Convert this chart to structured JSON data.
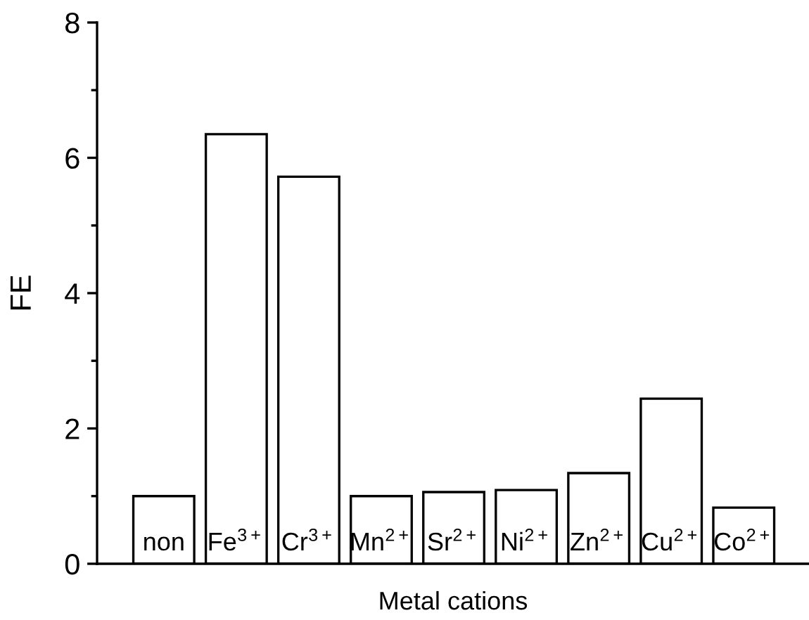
{
  "chart_data": {
    "type": "bar",
    "xlabel": "Metal cations",
    "ylabel": "FE",
    "categories": [
      "non",
      "Fe$^{3+}$",
      "Cr$^{3+}$",
      "Mn$^{2+}$",
      "Sr$^{2+}$",
      "Ni$^{2+}$",
      "Zn$^{2+}$",
      "Cu$^{2+}$",
      "Co$^{2+}$"
    ],
    "values": [
      1.0,
      6.35,
      5.72,
      1.0,
      1.06,
      1.09,
      1.34,
      2.44,
      0.83
    ],
    "color": "#ffffff",
    "ylim": [
      0,
      8
    ],
    "yticks": [
      0,
      {
        "value": 1,
        "label": null
      },
      2,
      {
        "value": 3,
        "label": null
      },
      4,
      {
        "value": 5,
        "label": null
      },
      6,
      {
        "value": 7,
        "label": null
      },
      8
    ],
    "grid": false
  }
}
